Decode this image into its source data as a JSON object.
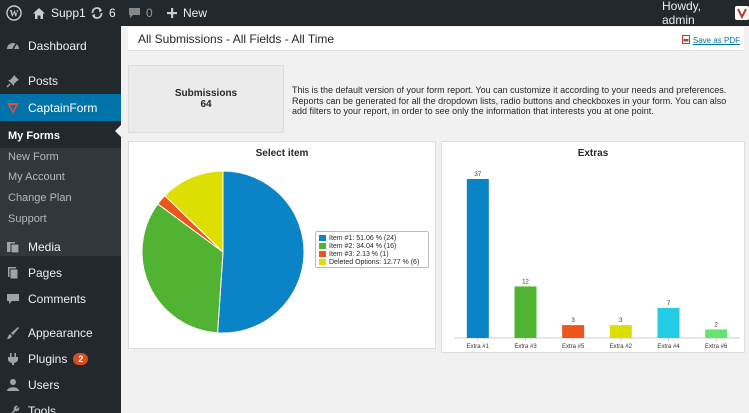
{
  "adminbar": {
    "site_name": "Supp1",
    "updates_count": "6",
    "comments_count": "0",
    "new_label": "New",
    "greeting": "Howdy, admin"
  },
  "sidebar": {
    "items": [
      {
        "label": "Dashboard",
        "icon": "dashboard-icon"
      },
      {
        "label": "Posts",
        "icon": "pin-icon"
      },
      {
        "label": "CaptainForm",
        "icon": "captainform-icon"
      },
      {
        "label": "Media",
        "icon": "media-icon"
      },
      {
        "label": "Pages",
        "icon": "pages-icon"
      },
      {
        "label": "Comments",
        "icon": "comment-icon"
      },
      {
        "label": "Appearance",
        "icon": "brush-icon"
      },
      {
        "label": "Plugins",
        "icon": "plug-icon",
        "badge": "2"
      },
      {
        "label": "Users",
        "icon": "user-icon"
      },
      {
        "label": "Tools",
        "icon": "wrench-icon"
      }
    ],
    "submenu": [
      "My Forms",
      "New Form",
      "My Account",
      "Change Plan",
      "Support"
    ]
  },
  "header": {
    "title": "All Submissions - All Fields - All Time",
    "pdf_label": "Save as PDF"
  },
  "summary": {
    "label": "Submissions",
    "count": "64",
    "description": "This is the default version of your form report. You can customize it according to your needs and preferences. Reports can be generated for all the dropdown lists, radio buttons and checkboxes in your form. You can also add filters to your report, in order to see only the information that interests you at one point."
  },
  "colors": {
    "accent": "#0073aa",
    "item1": "#0a84c6",
    "item2": "#50b432",
    "item3": "#ed561b",
    "deleted": "#dddf00",
    "extra4": "#24cbe5",
    "extra6": "#64e572"
  },
  "chart_data": [
    {
      "type": "pie",
      "title": "Select item",
      "legend_position": "right",
      "slices": [
        {
          "label": "Item #1: 51.06 % (24)",
          "value": 24,
          "color": "#0a84c6"
        },
        {
          "label": "Item #2: 34.04 % (16)",
          "value": 16,
          "color": "#50b432"
        },
        {
          "label": "Item #3: 2.13 % (1)",
          "value": 1,
          "color": "#ed561b"
        },
        {
          "label": "Deleted Options: 12.77 % (6)",
          "value": 6,
          "color": "#dddf00"
        }
      ]
    },
    {
      "type": "bar",
      "title": "Extras",
      "categories": [
        "Extra #1",
        "Extra #3",
        "Extra #5",
        "Extra #2",
        "Extra #4",
        "Extra #6"
      ],
      "values": [
        37,
        12,
        3,
        3,
        7,
        2
      ],
      "colors": [
        "#0a84c6",
        "#50b432",
        "#ed561b",
        "#dddf00",
        "#24cbe5",
        "#64e572"
      ],
      "ylim": [
        0,
        37
      ],
      "grid": false
    }
  ]
}
